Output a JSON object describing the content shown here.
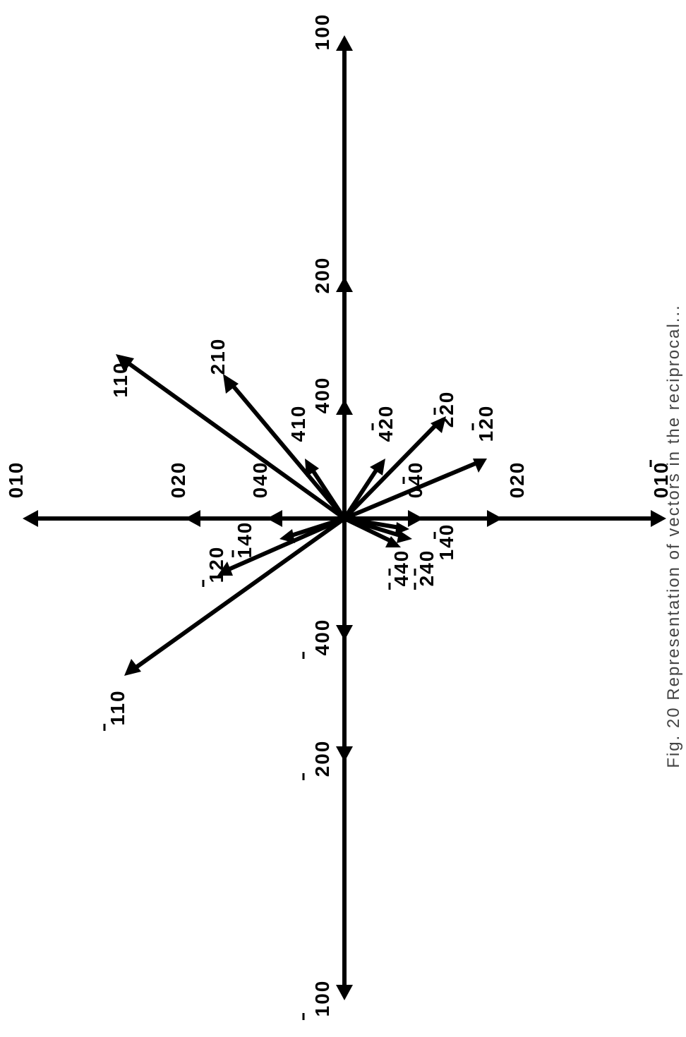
{
  "diagram": {
    "axes": {
      "label_100": "100",
      "label_200": "200",
      "label_400": "400",
      "label_n400": "400",
      "label_n200": "200",
      "label_n100": "100",
      "label_010": "010",
      "label_020": "020",
      "label_040": "040",
      "label_n040": "040",
      "label_n020": "020",
      "label_n010": "010"
    },
    "vectors": {
      "v110": "110",
      "v210": "210",
      "v410": "410",
      "v420": "420",
      "v220": "220",
      "v120": "120",
      "v140": "140",
      "v120n": "120",
      "v110n": "110",
      "v440": "440",
      "v240": "240",
      "v140n": "140"
    },
    "caption": "Fig. 20 Representation of vectors in the reciprocal..."
  },
  "colors": {
    "ink": "#000000",
    "background": "#ffffff"
  }
}
